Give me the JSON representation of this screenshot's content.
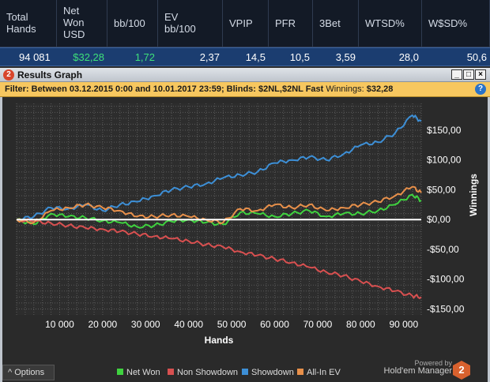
{
  "stats": {
    "columns": [
      {
        "label": "Total\nHands",
        "value": "94 081",
        "green": false
      },
      {
        "label": "Net\nWon\nUSD",
        "value": "$32,28",
        "green": true
      },
      {
        "label": "bb/100",
        "value": "1,72",
        "green": true
      },
      {
        "label": "EV\nbb/100",
        "value": "2,37",
        "green": false
      },
      {
        "label": "VPIP",
        "value": "14,5",
        "green": false
      },
      {
        "label": "PFR",
        "value": "10,5",
        "green": false
      },
      {
        "label": "3Bet",
        "value": "3,59",
        "green": false
      },
      {
        "label": "WTSD%",
        "value": "28,0",
        "green": false
      },
      {
        "label": "W$SD%",
        "value": "50,6",
        "green": false
      }
    ]
  },
  "window": {
    "logo_text": "2",
    "title": "Results Graph",
    "minimize": "_",
    "maximize": "□",
    "close": "×"
  },
  "filter": {
    "prefix": "Filter:",
    "text": "Between 03.12.2015 0:00 and 10.01.2017 23:59; Blinds: $2NL,$2NL Fast",
    "winnings_label": "Winnings:",
    "winnings_value": "$32,28",
    "help_icon": "?"
  },
  "chart_data": {
    "type": "line",
    "xlabel": "Hands",
    "ylabel": "Winnings",
    "xlim": [
      0,
      94081
    ],
    "ylim": [
      -160,
      195
    ],
    "x_ticks": [
      10000,
      20000,
      30000,
      40000,
      50000,
      60000,
      70000,
      80000,
      90000
    ],
    "x_tick_labels": [
      "10 000",
      "20 000",
      "30 000",
      "40 000",
      "50 000",
      "60 000",
      "70 000",
      "80 000",
      "90 000"
    ],
    "y_ticks": [
      150,
      100,
      50,
      0,
      -50,
      -100,
      -150
    ],
    "y_tick_labels": [
      "$150,00",
      "$100,00",
      "$50,00",
      "$0,00",
      "-$50,00",
      "-$100,00",
      "-$150,00"
    ],
    "grid": true,
    "legend_position": "bottom",
    "series": [
      {
        "name": "Net Won",
        "color": "#3fd23f",
        "x": [
          0,
          4000,
          8000,
          12000,
          16000,
          20000,
          24000,
          28000,
          32000,
          36000,
          40000,
          44000,
          48000,
          52000,
          56000,
          60000,
          64000,
          68000,
          72000,
          76000,
          80000,
          84000,
          88000,
          92000,
          94081
        ],
        "y": [
          0,
          -8,
          10,
          5,
          3,
          -2,
          -5,
          -12,
          -10,
          -3,
          0,
          -5,
          -8,
          12,
          10,
          5,
          10,
          15,
          5,
          10,
          10,
          15,
          25,
          42,
          32
        ]
      },
      {
        "name": "Non Showdown",
        "color": "#d85050",
        "x": [
          0,
          4000,
          8000,
          12000,
          16000,
          20000,
          24000,
          28000,
          32000,
          36000,
          40000,
          44000,
          48000,
          52000,
          56000,
          60000,
          64000,
          68000,
          72000,
          76000,
          80000,
          84000,
          88000,
          92000,
          94081
        ],
        "y": [
          0,
          -3,
          -6,
          -10,
          -14,
          -16,
          -20,
          -24,
          -28,
          -32,
          -36,
          -42,
          -46,
          -54,
          -60,
          -66,
          -72,
          -80,
          -88,
          -94,
          -104,
          -112,
          -120,
          -128,
          -130
        ]
      },
      {
        "name": "Showdown",
        "color": "#3d8fd6",
        "x": [
          0,
          4000,
          8000,
          12000,
          16000,
          20000,
          24000,
          28000,
          32000,
          36000,
          40000,
          44000,
          48000,
          52000,
          56000,
          60000,
          64000,
          68000,
          72000,
          76000,
          80000,
          84000,
          88000,
          92000,
          94081
        ],
        "y": [
          0,
          5,
          20,
          18,
          25,
          15,
          25,
          30,
          40,
          50,
          55,
          60,
          70,
          75,
          80,
          95,
          100,
          105,
          100,
          110,
          125,
          130,
          145,
          175,
          165
        ]
      },
      {
        "name": "All-In EV",
        "color": "#e8904a",
        "x": [
          0,
          4000,
          8000,
          12000,
          16000,
          20000,
          24000,
          28000,
          32000,
          36000,
          40000,
          44000,
          48000,
          52000,
          56000,
          60000,
          64000,
          68000,
          72000,
          76000,
          80000,
          84000,
          88000,
          92000,
          94081
        ],
        "y": [
          0,
          -5,
          15,
          20,
          25,
          20,
          15,
          5,
          5,
          8,
          5,
          0,
          -5,
          18,
          15,
          25,
          20,
          25,
          15,
          20,
          25,
          30,
          40,
          55,
          45
        ]
      }
    ]
  },
  "bottom": {
    "options_label": "^  Options",
    "powered_by": "Powered by",
    "brand": "Hold'em Manager",
    "badge": "2"
  }
}
